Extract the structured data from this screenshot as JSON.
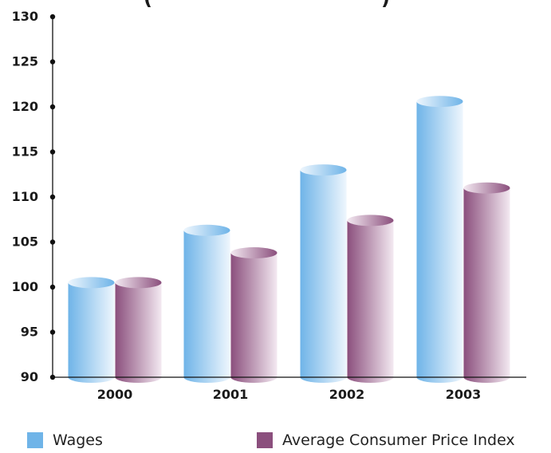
{
  "chart_data": {
    "type": "bar",
    "title": "(",
    "title_right": ")",
    "categories": [
      "2000",
      "2001",
      "2002",
      "2003"
    ],
    "series": [
      {
        "name": "Wages",
        "values": [
          100.5,
          106.3,
          113.0,
          120.6
        ]
      },
      {
        "name": "Average Consumer Price Index",
        "values": [
          100.5,
          103.8,
          107.4,
          111.0
        ]
      }
    ],
    "ylim": [
      90,
      130
    ],
    "yticks": [
      "90",
      "95",
      "100",
      "105",
      "110",
      "115",
      "120",
      "125",
      "130"
    ],
    "xlabel": "",
    "ylabel": "",
    "grid": false,
    "legend_position": "bottom",
    "colors": {
      "wages": "#6fb4e8",
      "wages_light": "#eef6fd",
      "cpi": "#8b4f7d",
      "cpi_light": "#f3e9f1",
      "axis": "#111111"
    }
  }
}
